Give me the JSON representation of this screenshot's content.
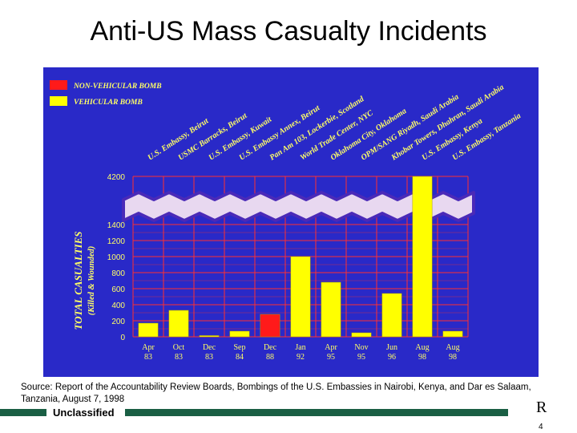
{
  "slide": {
    "title": "Anti-US Mass Casualty Incidents",
    "source": "Source: Report of the Accountability Review Boards, Bombings of the U.S. Embassies in Nairobi, Kenya, and Dar es Salaam, Tanzania, August 7, 1998",
    "classification": "Unclassified",
    "logo": "R",
    "page_number": "4"
  },
  "colors": {
    "panel": "#2929c8",
    "grid": "#ff3030",
    "vehicular": "#ffff00",
    "non_vehicular": "#ff1a1a",
    "text": "#ffff66",
    "band": "#e8d8f0",
    "band_edge": "#4a2ab8"
  },
  "chart_data": {
    "type": "bar",
    "ylabel": "TOTAL CASUALTIES",
    "ylabel_sub": "(Killed & Wounded)",
    "y_ticks": [
      "0",
      "200",
      "400",
      "600",
      "800",
      "1000",
      "1200",
      "1400",
      "4200"
    ],
    "y_break": {
      "from": 1400,
      "to": 4200
    },
    "legend": [
      {
        "label": "NON-VEHICULAR BOMB",
        "color": "#ff1a1a"
      },
      {
        "label": "VEHICULAR BOMB",
        "color": "#ffff00"
      }
    ],
    "categories": [
      {
        "month": "Apr",
        "year": "83",
        "label": "U.S. Embassy, Beirut"
      },
      {
        "month": "Oct",
        "year": "83",
        "label": "USMC Barracks, Beirut"
      },
      {
        "month": "Dec",
        "year": "83",
        "label": "U.S. Embassy, Kuwait"
      },
      {
        "month": "Sep",
        "year": "84",
        "label": "U.S. Embassy Annex, Beirut"
      },
      {
        "month": "Dec",
        "year": "88",
        "label": "Pan Am 103, Lockerbie, Scotland"
      },
      {
        "month": "Jan",
        "year": "92",
        "label": "World Trade Center, NYC"
      },
      {
        "month": "Apr",
        "year": "95",
        "label": "Oklahoma City, Oklahoma"
      },
      {
        "month": "Nov",
        "year": "95",
        "label": "OPM/SANG Riyadh, Saudi Arabia"
      },
      {
        "month": "Jun",
        "year": "96",
        "label": "Khobar Towers, Dhahran, Saudi Arabia"
      },
      {
        "month": "Aug",
        "year": "98",
        "label": "U.S. Embassy, Kenya"
      },
      {
        "month": "Aug",
        "year": "98",
        "label": "U.S. Embassy, Tanzania"
      }
    ],
    "series": [
      {
        "type": "vehicular",
        "values": [
          170,
          330,
          15,
          70,
          0,
          1000,
          680,
          50,
          540,
          4200,
          70
        ]
      },
      {
        "type": "non_vehicular",
        "values": [
          0,
          0,
          0,
          0,
          280,
          0,
          0,
          0,
          0,
          0,
          0
        ]
      }
    ]
  }
}
